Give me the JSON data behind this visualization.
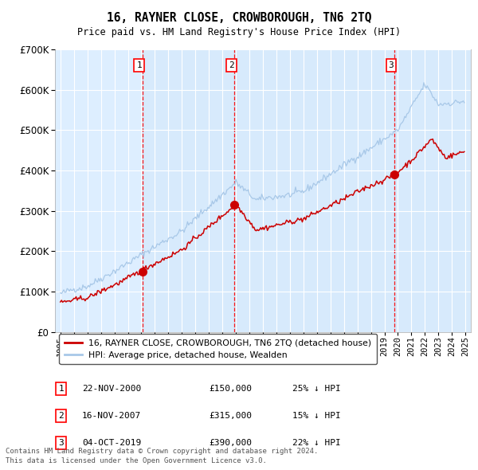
{
  "title": "16, RAYNER CLOSE, CROWBOROUGH, TN6 2TQ",
  "subtitle": "Price paid vs. HM Land Registry's House Price Index (HPI)",
  "hpi_label": "HPI: Average price, detached house, Wealden",
  "price_label": "16, RAYNER CLOSE, CROWBOROUGH, TN6 2TQ (detached house)",
  "hpi_color": "#a8c8e8",
  "price_color": "#cc0000",
  "transactions": [
    {
      "num": 1,
      "date": "22-NOV-2000",
      "price": 150000,
      "pct": "25%",
      "x_year": 2001.1
    },
    {
      "num": 2,
      "date": "16-NOV-2007",
      "price": 315000,
      "pct": "15%",
      "x_year": 2007.9
    },
    {
      "num": 3,
      "date": "04-OCT-2019",
      "price": 390000,
      "pct": "22%",
      "x_year": 2019.75
    }
  ],
  "footer1": "Contains HM Land Registry data © Crown copyright and database right 2024.",
  "footer2": "This data is licensed under the Open Government Licence v3.0.",
  "ylim": [
    0,
    700000
  ],
  "xlim_start": 1994.6,
  "xlim_end": 2025.4,
  "background_color": "#ddeeff",
  "plot_bg": "#ddeeff"
}
